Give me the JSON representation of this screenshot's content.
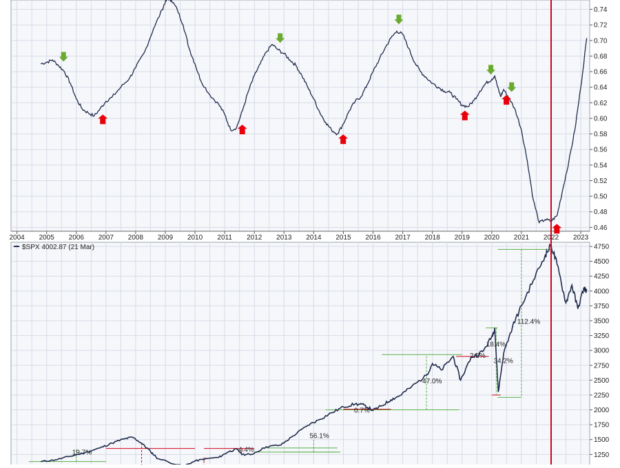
{
  "colors": {
    "background": "#ffffff",
    "panel": "#f6f7fb",
    "grid": "#d7dbe6",
    "axis": "#333333",
    "line": "#1e2a4a",
    "vertical_marker": "#d0021b",
    "up_arrow": "#e8000b",
    "down_arrow": "#6aaa2e",
    "measure_green": "#58b04a",
    "measure_red": "#d0021b"
  },
  "chart_data": [
    {
      "type": "line",
      "legend": "",
      "xlim": [
        2003.8,
        2023.3
      ],
      "ylim": [
        0.455,
        0.752
      ],
      "x_ticks": [
        "2004",
        "2005",
        "2006",
        "2007",
        "2008",
        "2009",
        "2010",
        "2011",
        "2012",
        "2013",
        "2014",
        "2015",
        "2016",
        "2017",
        "2018",
        "2019",
        "2020",
        "2021",
        "2022",
        "2023"
      ],
      "y_ticks": [
        "0.46",
        "0.48",
        "0.50",
        "0.52",
        "0.54",
        "0.56",
        "0.58",
        "0.60",
        "0.62",
        "0.64",
        "0.66",
        "0.68",
        "0.70",
        "0.72",
        "0.74"
      ],
      "vertical_marker_x": 2022.0,
      "series": [
        {
          "x": [
            2004.8,
            2005.0,
            2005.2,
            2005.4,
            2005.6,
            2005.8,
            2006.0,
            2006.2,
            2006.4,
            2006.6,
            2006.8,
            2007.0,
            2007.2,
            2007.5,
            2007.8,
            2008.0,
            2008.3,
            2008.6,
            2008.9,
            2009.0,
            2009.1,
            2009.2,
            2009.4,
            2009.6,
            2009.8,
            2010.0,
            2010.2,
            2010.5,
            2010.8,
            2011.0,
            2011.2,
            2011.4,
            2011.6,
            2011.8,
            2012.0,
            2012.2,
            2012.4,
            2012.6,
            2012.8,
            2013.0,
            2013.2,
            2013.4,
            2013.6,
            2013.8,
            2014.0,
            2014.2,
            2014.4,
            2014.6,
            2014.8,
            2015.0,
            2015.2,
            2015.4,
            2015.6,
            2015.8,
            2016.0,
            2016.2,
            2016.4,
            2016.6,
            2016.8,
            2017.0,
            2017.2,
            2017.4,
            2017.6,
            2017.8,
            2018.0,
            2018.2,
            2018.4,
            2018.6,
            2018.8,
            2019.0,
            2019.2,
            2019.4,
            2019.6,
            2019.8,
            2020.0,
            2020.1,
            2020.2,
            2020.3,
            2020.4,
            2020.6,
            2020.8,
            2021.0,
            2021.2,
            2021.4,
            2021.6,
            2021.8,
            2022.0,
            2022.2,
            2022.4,
            2022.6,
            2022.8,
            2023.0,
            2023.2
          ],
          "y": [
            0.67,
            0.672,
            0.675,
            0.668,
            0.66,
            0.645,
            0.625,
            0.612,
            0.607,
            0.603,
            0.612,
            0.622,
            0.627,
            0.64,
            0.652,
            0.665,
            0.685,
            0.715,
            0.74,
            0.75,
            0.754,
            0.752,
            0.74,
            0.72,
            0.69,
            0.67,
            0.648,
            0.63,
            0.618,
            0.605,
            0.585,
            0.588,
            0.61,
            0.635,
            0.655,
            0.67,
            0.685,
            0.695,
            0.688,
            0.683,
            0.675,
            0.668,
            0.655,
            0.64,
            0.625,
            0.608,
            0.595,
            0.585,
            0.58,
            0.593,
            0.61,
            0.622,
            0.628,
            0.643,
            0.66,
            0.675,
            0.69,
            0.703,
            0.712,
            0.708,
            0.69,
            0.672,
            0.66,
            0.652,
            0.645,
            0.64,
            0.635,
            0.633,
            0.625,
            0.617,
            0.615,
            0.623,
            0.635,
            0.645,
            0.65,
            0.655,
            0.64,
            0.628,
            0.637,
            0.625,
            0.61,
            0.585,
            0.545,
            0.495,
            0.466,
            0.47,
            0.468,
            0.475,
            0.51,
            0.545,
            0.585,
            0.64,
            0.703
          ]
        }
      ],
      "up_arrows_x": [
        2006.8,
        2011.5,
        2014.9,
        2019.0,
        2020.4,
        2022.1
      ],
      "down_arrows_x": [
        2005.5,
        2012.8,
        2016.8,
        2019.9,
        2020.6
      ]
    },
    {
      "type": "line",
      "legend": "$SPX 4002.87 (21 Mar)",
      "xlim": [
        2003.8,
        2023.3
      ],
      "ylim": [
        1080,
        4820
      ],
      "y_ticks": [
        "1250",
        "1500",
        "1750",
        "2000",
        "2250",
        "2500",
        "2750",
        "3000",
        "3250",
        "3500",
        "3750",
        "4000",
        "4250",
        "4500",
        "4750"
      ],
      "series": [
        {
          "name": "$SPX",
          "x": [
            2004.8,
            2005.3,
            2005.8,
            2006.3,
            2006.8,
            2007.2,
            2007.6,
            2007.9,
            2008.2,
            2008.5,
            2008.75,
            2009.6,
            2010.0,
            2010.4,
            2010.8,
            2011.1,
            2011.4,
            2011.6,
            2011.9,
            2012.4,
            2012.9,
            2013.3,
            2013.8,
            2014.2,
            2014.6,
            2015.0,
            2015.4,
            2015.7,
            2016.0,
            2016.3,
            2016.6,
            2016.9,
            2017.3,
            2017.8,
            2018.0,
            2018.3,
            2018.7,
            2018.95,
            2019.3,
            2019.7,
            2020.0,
            2020.1,
            2020.22,
            2020.4,
            2020.7,
            2021.0,
            2021.4,
            2021.8,
            2022.0,
            2022.2,
            2022.5,
            2022.7,
            2022.9,
            2023.1,
            2023.2
          ],
          "y": [
            1130,
            1160,
            1220,
            1280,
            1360,
            1440,
            1510,
            1540,
            1440,
            1300,
            1180,
            1050,
            1140,
            1180,
            1200,
            1290,
            1340,
            1250,
            1250,
            1380,
            1410,
            1560,
            1740,
            1840,
            1950,
            2050,
            2100,
            2080,
            1990,
            2070,
            2170,
            2240,
            2390,
            2580,
            2780,
            2670,
            2900,
            2500,
            2880,
            2980,
            3230,
            3380,
            2300,
            2950,
            3400,
            3750,
            4180,
            4600,
            4770,
            4450,
            3800,
            4100,
            3700,
            4050,
            4000
          ]
        }
      ],
      "annotations": [
        "19.7%",
        "4.4%",
        "56.1%",
        "0.7%",
        "47.0%",
        "2.5%",
        "18.4%",
        "34.2%",
        "112.4%"
      ]
    }
  ]
}
